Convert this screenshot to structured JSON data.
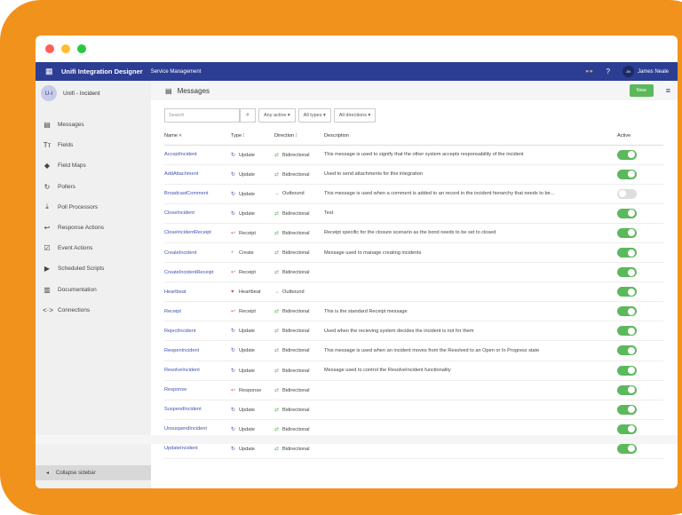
{
  "app": {
    "title": "Unifi Integration Designer",
    "subtitle": "Service Management",
    "user_initials": "JN",
    "user_name": "James Neale"
  },
  "project": {
    "initials": "U-I",
    "name": "Unifi - Incident"
  },
  "sidebar": {
    "items": [
      {
        "label": "Messages",
        "icon": "file-icon"
      },
      {
        "label": "Fields",
        "icon": "text-height-icon"
      },
      {
        "label": "Field Maps",
        "icon": "map-signs-icon"
      },
      {
        "label": "Pollers",
        "icon": "refresh-icon"
      },
      {
        "label": "Poll Processors",
        "icon": "download-icon"
      },
      {
        "label": "Response Actions",
        "icon": "reply-icon"
      },
      {
        "label": "Event Actions",
        "icon": "check-square-icon"
      },
      {
        "label": "Scheduled Scripts",
        "icon": "play-circle-icon"
      },
      {
        "label": "Documentation",
        "icon": "book-icon"
      },
      {
        "label": "Connections",
        "icon": "code-icon"
      }
    ],
    "collapse": "Collapse sidebar"
  },
  "page": {
    "title": "Messages",
    "new_label": "New"
  },
  "filters": {
    "search_placeholder": "Search",
    "active": "Any active",
    "types": "All types",
    "directions": "All directions"
  },
  "table": {
    "headers": [
      "Name",
      "Type",
      "Direction",
      "Description",
      "Active"
    ],
    "rows": [
      {
        "name": "AcceptIncident",
        "type": "Update",
        "direction": "Bidirectional",
        "description": "This message is used to signify that the other system accepts responsability of the incident",
        "active": true
      },
      {
        "name": "AddAttachment",
        "type": "Update",
        "direction": "Bidirectional",
        "description": "Used to send attachments for this integration",
        "active": true
      },
      {
        "name": "BroadcastComment",
        "type": "Update",
        "direction": "Outbound",
        "description": "This message is used when a comment is added to an record in the incident hierarchy that needs to be...",
        "active": false
      },
      {
        "name": "CloseIncident",
        "type": "Update",
        "direction": "Bidirectional",
        "description": "Test",
        "active": true
      },
      {
        "name": "CloseIncidentReceipt",
        "type": "Receipt",
        "direction": "Bidirectional",
        "description": "Receipt specific for the closure scenario as the bond needs to be set to closed",
        "active": true
      },
      {
        "name": "CreateIncident",
        "type": "Create",
        "direction": "Bidirectional",
        "description": "Message used to manage creating incidents",
        "active": true
      },
      {
        "name": "CreateIncidentReceipt",
        "type": "Receipt",
        "direction": "Bidirectional",
        "description": "",
        "active": true
      },
      {
        "name": "Heartbeat",
        "type": "Heartbeat",
        "direction": "Outbound",
        "description": "",
        "active": true
      },
      {
        "name": "Receipt",
        "type": "Receipt",
        "direction": "Bidirectional",
        "description": "This is the standard Receipt message",
        "active": true
      },
      {
        "name": "RejectIncident",
        "type": "Update",
        "direction": "Bidirectional",
        "description": "Used when the recieving system decides the incident is not for them",
        "active": true
      },
      {
        "name": "ReopenIncident",
        "type": "Update",
        "direction": "Bidirectional",
        "description": "This message is used when an incident moves from the Resolved to an Open or In Progress state",
        "active": true
      },
      {
        "name": "ResolveIncident",
        "type": "Update",
        "direction": "Bidirectional",
        "description": "Message used to control the ResolveIncident functionality",
        "active": true
      },
      {
        "name": "Response",
        "type": "Response",
        "direction": "Bidirectional",
        "description": "",
        "active": true
      },
      {
        "name": "SuspendIncident",
        "type": "Update",
        "direction": "Bidirectional",
        "description": "",
        "active": true
      },
      {
        "name": "UnsuspendIncident",
        "type": "Update",
        "direction": "Bidirectional",
        "description": "",
        "active": true
      },
      {
        "name": "UpdateIncident",
        "type": "Update",
        "direction": "Bidirectional",
        "description": "",
        "active": true
      }
    ]
  },
  "colors": {
    "brand": "#2C3D94",
    "accent": "#F1921D",
    "success": "#5CB85C",
    "link": "#3F51B5"
  }
}
